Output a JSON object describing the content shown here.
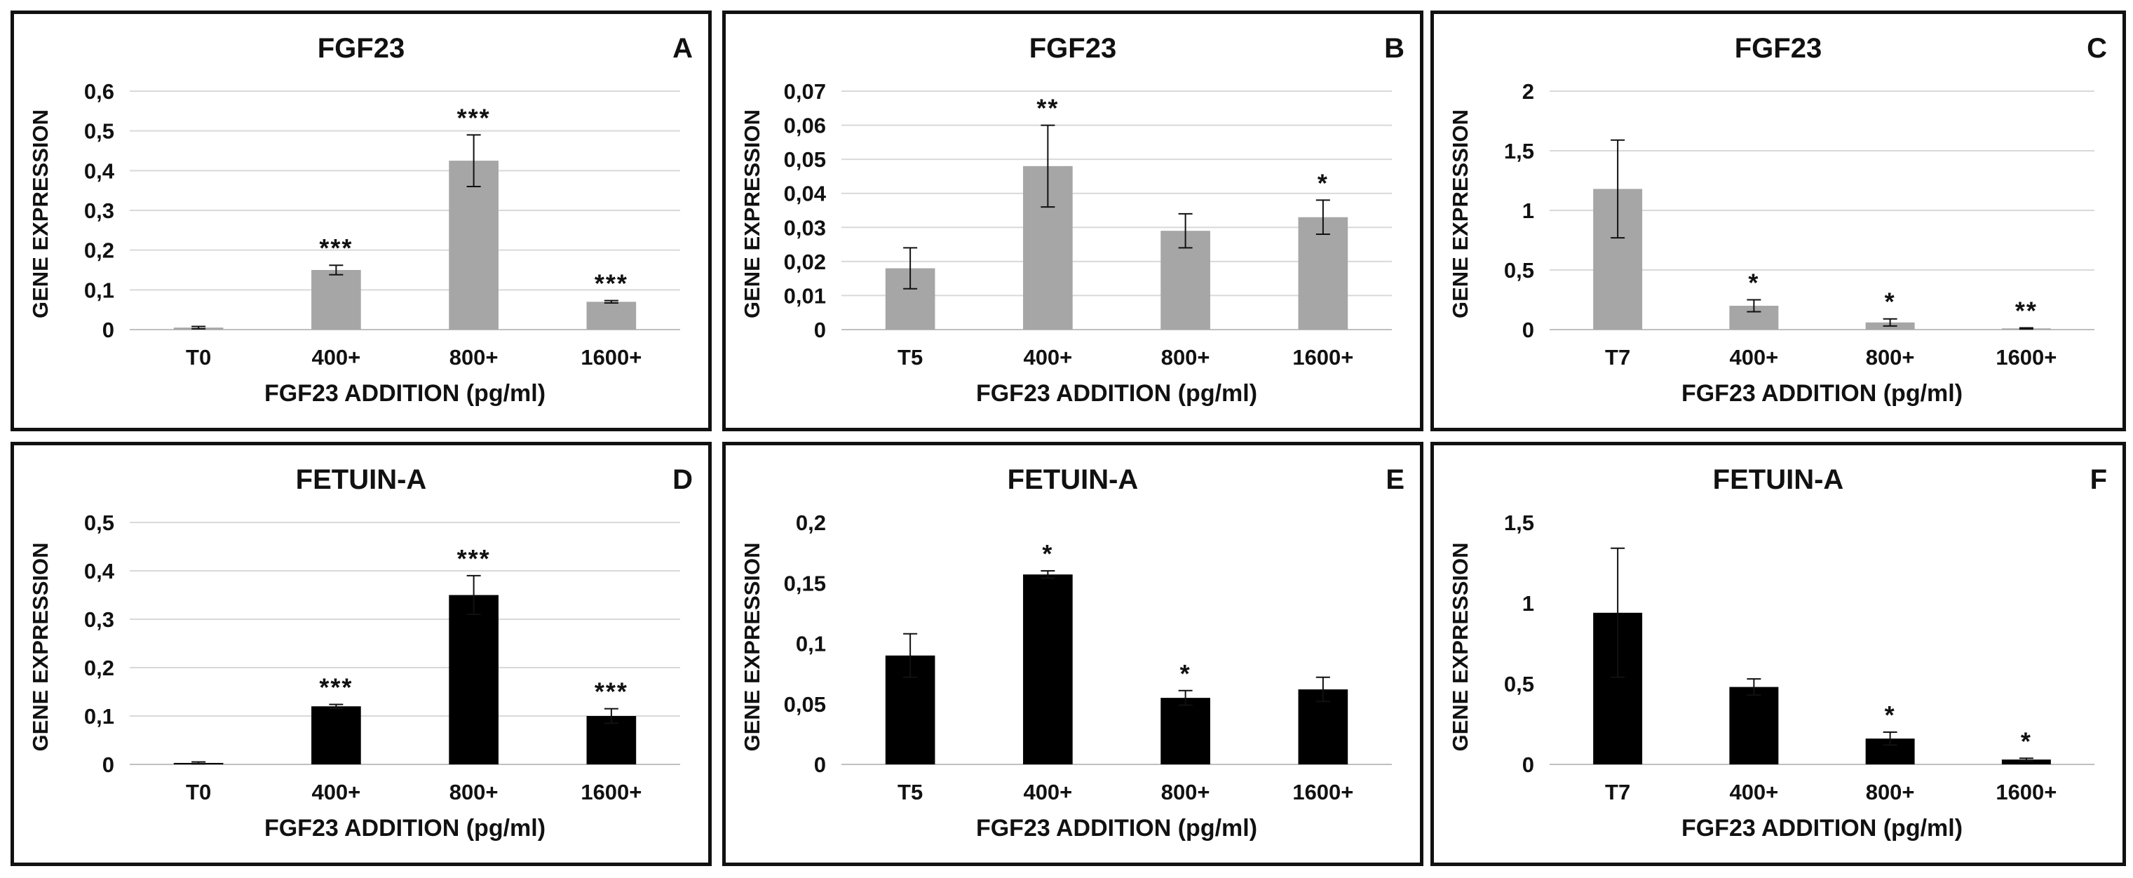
{
  "colors": {
    "gray_bar": "#A6A6A6",
    "black_bar": "#000000",
    "grid": "#D9D9D9",
    "axis": "#BFBFBF"
  },
  "chart_data": [
    {
      "id": "A",
      "type": "bar",
      "title": "FGF23",
      "letter": "A",
      "xlabel": "FGF23 ADDITION (pg/ml)",
      "ylabel": "GENE EXPRESSION",
      "categories": [
        "T0",
        "400+",
        "800+",
        "1600+"
      ],
      "values": [
        0.005,
        0.15,
        0.425,
        0.07
      ],
      "errors": [
        0.003,
        0.012,
        0.065,
        0.003
      ],
      "significance": [
        "",
        "***",
        "***",
        "***"
      ],
      "ylim": [
        0,
        0.6
      ],
      "yticks": [
        0,
        0.1,
        0.2,
        0.3,
        0.4,
        0.5,
        0.6
      ],
      "ytick_labels": [
        "0",
        "0,1",
        "0,2",
        "0,3",
        "0,4",
        "0,5",
        "0,6"
      ],
      "color": "gray",
      "grid": true,
      "bold_categories": false
    },
    {
      "id": "B",
      "type": "bar",
      "title": "FGF23",
      "letter": "B",
      "xlabel": "FGF23 ADDITION (pg/ml)",
      "ylabel": "GENE EXPRESSION",
      "categories": [
        "T5",
        "400+",
        "800+",
        "1600+"
      ],
      "values": [
        0.018,
        0.048,
        0.029,
        0.033
      ],
      "errors": [
        0.006,
        0.012,
        0.005,
        0.005
      ],
      "significance": [
        "",
        "**",
        "",
        "*"
      ],
      "ylim": [
        0,
        0.07
      ],
      "yticks": [
        0,
        0.01,
        0.02,
        0.03,
        0.04,
        0.05,
        0.06,
        0.07
      ],
      "ytick_labels": [
        "0",
        "0,01",
        "0,02",
        "0,03",
        "0,04",
        "0,05",
        "0,06",
        "0,07"
      ],
      "color": "gray",
      "grid": true,
      "bold_categories": false
    },
    {
      "id": "C",
      "type": "bar",
      "title": "FGF23",
      "letter": "C",
      "xlabel": "FGF23 ADDITION (pg/ml)",
      "ylabel": "GENE EXPRESSION",
      "categories": [
        "T7",
        "400+",
        "800+",
        "1600+"
      ],
      "values": [
        1.18,
        0.2,
        0.06,
        0.01
      ],
      "errors": [
        0.41,
        0.05,
        0.03,
        0.005
      ],
      "significance": [
        "",
        "*",
        "*",
        "**"
      ],
      "ylim": [
        0,
        2
      ],
      "yticks": [
        0,
        0.5,
        1,
        1.5,
        2
      ],
      "ytick_labels": [
        "0",
        "0,5",
        "1",
        "1,5",
        "2"
      ],
      "color": "gray",
      "grid": true,
      "bold_categories": true
    },
    {
      "id": "D",
      "type": "bar",
      "title": "FETUIN-A",
      "letter": "D",
      "xlabel": "FGF23 ADDITION (pg/ml)",
      "ylabel": "GENE EXPRESSION",
      "categories": [
        "T0",
        "400+",
        "800+",
        "1600+"
      ],
      "values": [
        0.003,
        0.12,
        0.35,
        0.1
      ],
      "errors": [
        0.002,
        0.004,
        0.04,
        0.015
      ],
      "significance": [
        "",
        "***",
        "***",
        "***"
      ],
      "ylim": [
        0,
        0.5
      ],
      "yticks": [
        0,
        0.1,
        0.2,
        0.3,
        0.4,
        0.5
      ],
      "ytick_labels": [
        "0",
        "0,1",
        "0,2",
        "0,3",
        "0,4",
        "0,5"
      ],
      "color": "black",
      "grid": true,
      "bold_categories": false
    },
    {
      "id": "E",
      "type": "bar",
      "title": "FETUIN-A",
      "letter": "E",
      "xlabel": "FGF23 ADDITION (pg/ml)",
      "ylabel": "GENE EXPRESSION",
      "categories": [
        "T5",
        "400+",
        "800+",
        "1600+"
      ],
      "values": [
        0.09,
        0.157,
        0.055,
        0.062
      ],
      "errors": [
        0.018,
        0.003,
        0.006,
        0.01
      ],
      "significance": [
        "",
        "*",
        "*",
        ""
      ],
      "ylim": [
        0,
        0.2
      ],
      "yticks": [
        0,
        0.05,
        0.1,
        0.15,
        0.2
      ],
      "ytick_labels": [
        "0",
        "0,05",
        "0,1",
        "0,15",
        "0,2"
      ],
      "color": "black",
      "grid": false,
      "bold_categories": true
    },
    {
      "id": "F",
      "type": "bar",
      "title": "FETUIN-A",
      "letter": "F",
      "xlabel": "FGF23 ADDITION (pg/ml)",
      "ylabel": "GENE EXPRESSION",
      "categories": [
        "T7",
        "400+",
        "800+",
        "1600+"
      ],
      "values": [
        0.94,
        0.48,
        0.16,
        0.03
      ],
      "errors": [
        0.4,
        0.05,
        0.04,
        0.008
      ],
      "significance": [
        "",
        "",
        "*",
        "*"
      ],
      "ylim": [
        0,
        1.5
      ],
      "yticks": [
        0,
        0.5,
        1,
        1.5
      ],
      "ytick_labels": [
        "0",
        "0,5",
        "1",
        "1,5"
      ],
      "color": "black",
      "grid": false,
      "bold_categories": false
    }
  ]
}
